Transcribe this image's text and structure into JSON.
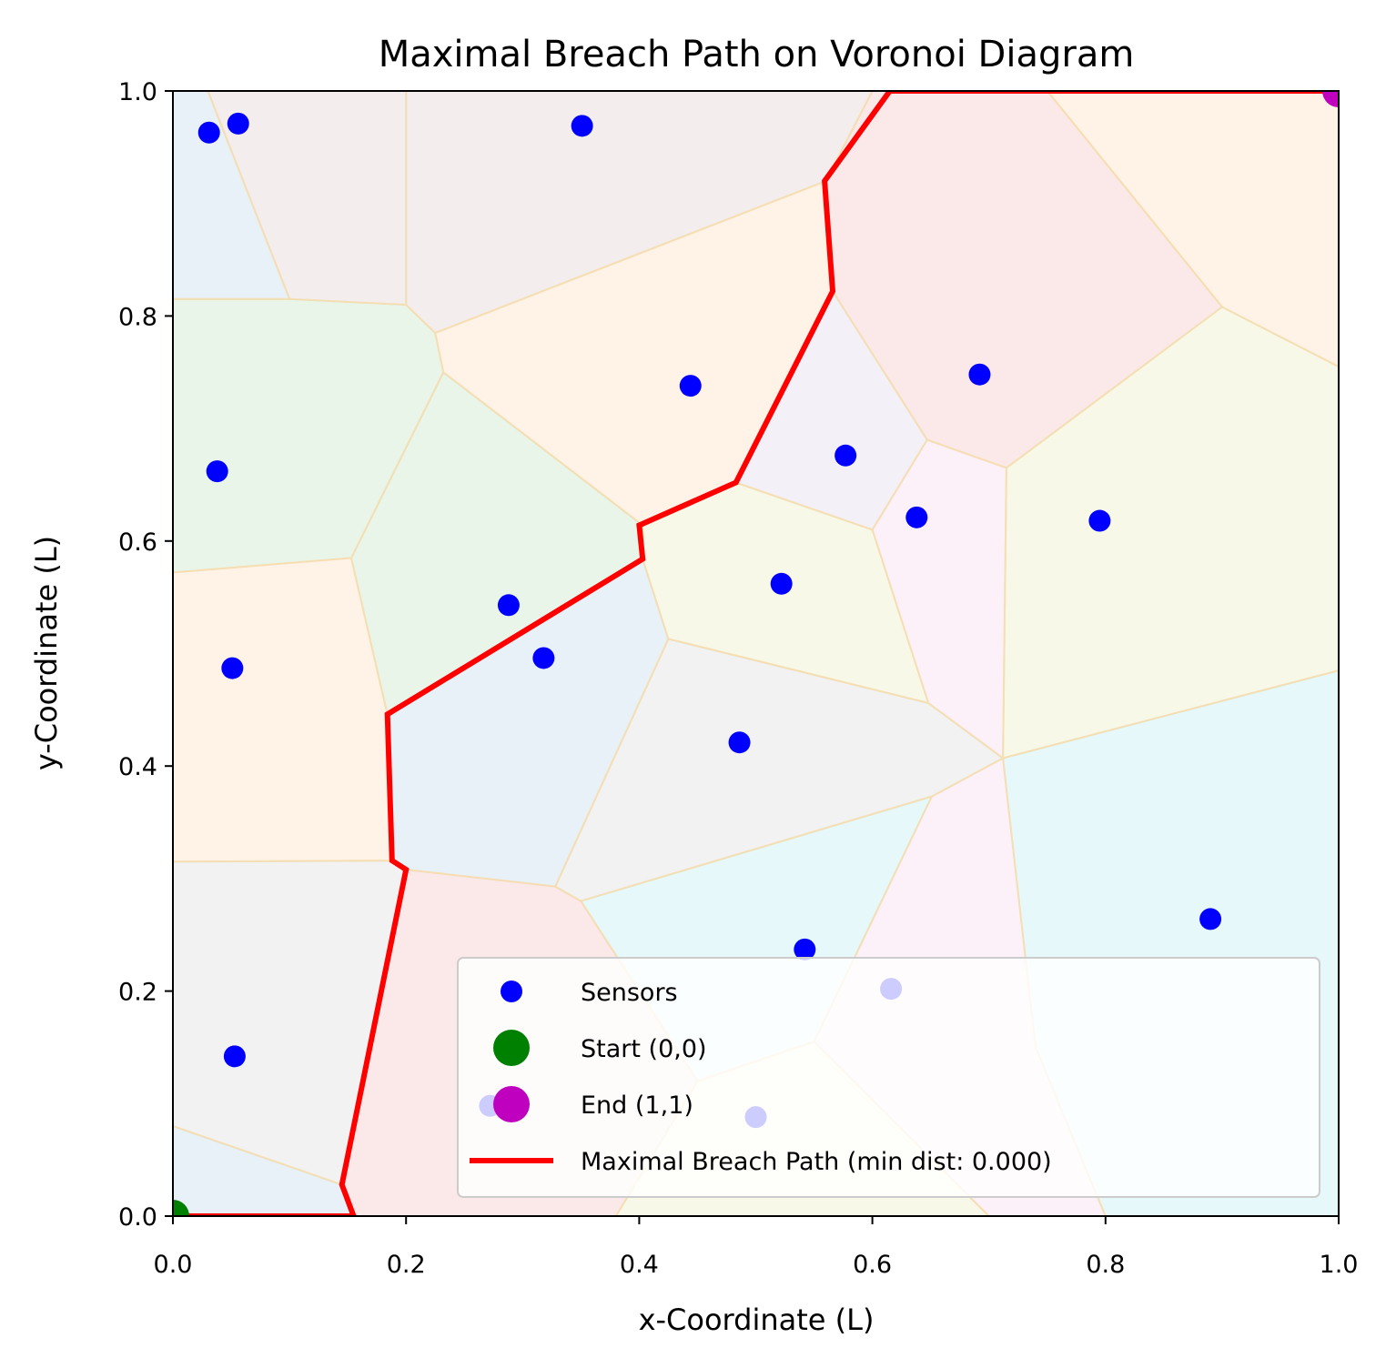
{
  "chart_data": {
    "type": "scatter",
    "title": "Maximal Breach Path on Voronoi Diagram",
    "xlabel": "x-Coordinate (L)",
    "ylabel": "y-Coordinate (L)",
    "xlim": [
      0,
      1
    ],
    "ylim": [
      0,
      1
    ],
    "grid": false,
    "legend_position": "lower-right",
    "xticks": [
      "0.0",
      "0.2",
      "0.4",
      "0.6",
      "0.8",
      "1.0"
    ],
    "yticks": [
      "0.0",
      "0.2",
      "0.4",
      "0.6",
      "0.8",
      "1.0"
    ],
    "colors": {
      "sensor": "#0000ff",
      "start": "#008000",
      "end": "#bf00bf",
      "path": "#ff0000",
      "edge": "#f5deb3"
    },
    "sensors": [
      [
        0.031,
        0.963
      ],
      [
        0.056,
        0.971
      ],
      [
        0.351,
        0.969
      ],
      [
        0.038,
        0.662
      ],
      [
        0.444,
        0.738
      ],
      [
        0.692,
        0.748
      ],
      [
        0.577,
        0.676
      ],
      [
        0.638,
        0.621
      ],
      [
        0.795,
        0.618
      ],
      [
        0.522,
        0.562
      ],
      [
        0.288,
        0.543
      ],
      [
        0.318,
        0.496
      ],
      [
        0.051,
        0.487
      ],
      [
        0.486,
        0.421
      ],
      [
        0.89,
        0.264
      ],
      [
        0.542,
        0.237
      ],
      [
        0.616,
        0.202
      ],
      [
        0.053,
        0.142
      ],
      [
        0.272,
        0.098
      ],
      [
        0.5,
        0.088
      ]
    ],
    "start_point": [
      0,
      0
    ],
    "end_point": [
      1,
      1
    ],
    "path": [
      [
        0.0,
        0.0
      ],
      [
        0.155,
        0.0
      ],
      [
        0.145,
        0.028
      ],
      [
        0.2,
        0.308
      ],
      [
        0.188,
        0.316
      ],
      [
        0.184,
        0.446
      ],
      [
        0.403,
        0.584
      ],
      [
        0.4,
        0.614
      ],
      [
        0.483,
        0.652
      ],
      [
        0.566,
        0.822
      ],
      [
        0.559,
        0.92
      ],
      [
        0.615,
        1.0
      ],
      [
        1.0,
        1.0
      ]
    ],
    "voronoi_cells": [
      {
        "color": "#1f77b4",
        "points": [
          [
            0,
            1
          ],
          [
            0.03,
            1
          ],
          [
            0.1,
            0.815
          ],
          [
            0,
            0.815
          ]
        ]
      },
      {
        "color": "#8c564b",
        "points": [
          [
            0.03,
            1
          ],
          [
            0.2,
            1
          ],
          [
            0.2,
            0.81
          ],
          [
            0.1,
            0.815
          ]
        ]
      },
      {
        "color": "#8c564b",
        "points": [
          [
            0.2,
            1
          ],
          [
            0.6,
            1
          ],
          [
            0.56,
            0.92
          ],
          [
            0.225,
            0.785
          ],
          [
            0.2,
            0.81
          ]
        ]
      },
      {
        "color": "#d62728",
        "points": [
          [
            0.6,
            1
          ],
          [
            0.75,
            1
          ],
          [
            0.9,
            0.808
          ],
          [
            0.715,
            0.665
          ],
          [
            0.647,
            0.69
          ],
          [
            0.566,
            0.822
          ],
          [
            0.56,
            0.92
          ]
        ]
      },
      {
        "color": "#ff7f0e",
        "points": [
          [
            0.75,
            1
          ],
          [
            1,
            1
          ],
          [
            1,
            0.755
          ],
          [
            0.9,
            0.808
          ]
        ]
      },
      {
        "color": "#2ca02c",
        "points": [
          [
            0,
            0.815
          ],
          [
            0.1,
            0.815
          ],
          [
            0.2,
            0.81
          ],
          [
            0.225,
            0.785
          ],
          [
            0.232,
            0.75
          ],
          [
            0.153,
            0.585
          ],
          [
            0,
            0.572
          ]
        ]
      },
      {
        "color": "#ff7f0e",
        "points": [
          [
            0.225,
            0.785
          ],
          [
            0.56,
            0.92
          ],
          [
            0.566,
            0.822
          ],
          [
            0.483,
            0.652
          ],
          [
            0.403,
            0.614
          ],
          [
            0.232,
            0.75
          ]
        ]
      },
      {
        "color": "#2ca02c",
        "points": [
          [
            0.232,
            0.75
          ],
          [
            0.403,
            0.614
          ],
          [
            0.403,
            0.584
          ],
          [
            0.184,
            0.446
          ],
          [
            0.153,
            0.585
          ]
        ]
      },
      {
        "color": "#9467bd",
        "points": [
          [
            0.566,
            0.822
          ],
          [
            0.647,
            0.69
          ],
          [
            0.6,
            0.61
          ],
          [
            0.483,
            0.652
          ]
        ]
      },
      {
        "color": "#e377c2",
        "points": [
          [
            0.647,
            0.69
          ],
          [
            0.715,
            0.665
          ],
          [
            0.712,
            0.407
          ],
          [
            0.648,
            0.456
          ],
          [
            0.6,
            0.61
          ]
        ]
      },
      {
        "color": "#bcbd22",
        "points": [
          [
            0.715,
            0.665
          ],
          [
            0.9,
            0.808
          ],
          [
            1,
            0.755
          ],
          [
            1,
            0.485
          ],
          [
            0.712,
            0.407
          ]
        ]
      },
      {
        "color": "#bcbd22",
        "points": [
          [
            0.403,
            0.614
          ],
          [
            0.483,
            0.652
          ],
          [
            0.6,
            0.61
          ],
          [
            0.648,
            0.456
          ],
          [
            0.425,
            0.513
          ],
          [
            0.403,
            0.584
          ]
        ]
      },
      {
        "color": "#ff7f0e",
        "points": [
          [
            0,
            0.572
          ],
          [
            0.153,
            0.585
          ],
          [
            0.184,
            0.446
          ],
          [
            0.188,
            0.316
          ],
          [
            0,
            0.315
          ]
        ]
      },
      {
        "color": "#1f77b4",
        "points": [
          [
            0.184,
            0.446
          ],
          [
            0.403,
            0.584
          ],
          [
            0.425,
            0.513
          ],
          [
            0.328,
            0.293
          ],
          [
            0.2,
            0.308
          ],
          [
            0.188,
            0.316
          ]
        ]
      },
      {
        "color": "#7f7f7f",
        "points": [
          [
            0.425,
            0.513
          ],
          [
            0.648,
            0.456
          ],
          [
            0.712,
            0.407
          ],
          [
            0.651,
            0.373
          ],
          [
            0.35,
            0.28
          ],
          [
            0.328,
            0.293
          ]
        ]
      },
      {
        "color": "#17becf",
        "points": [
          [
            0.712,
            0.407
          ],
          [
            1,
            0.485
          ],
          [
            1,
            0
          ],
          [
            0.8,
            0
          ],
          [
            0.74,
            0.15
          ]
        ]
      },
      {
        "color": "#e377c2",
        "points": [
          [
            0.651,
            0.373
          ],
          [
            0.712,
            0.407
          ],
          [
            0.74,
            0.15
          ],
          [
            0.8,
            0
          ],
          [
            0.7,
            0
          ],
          [
            0.55,
            0.155
          ]
        ]
      },
      {
        "color": "#17becf",
        "points": [
          [
            0.35,
            0.28
          ],
          [
            0.651,
            0.373
          ],
          [
            0.55,
            0.155
          ],
          [
            0.45,
            0.12
          ]
        ]
      },
      {
        "color": "#7f7f7f",
        "points": [
          [
            0,
            0.315
          ],
          [
            0.188,
            0.316
          ],
          [
            0.2,
            0.308
          ],
          [
            0.145,
            0.028
          ],
          [
            0,
            0.08
          ]
        ]
      },
      {
        "color": "#d62728",
        "points": [
          [
            0.2,
            0.308
          ],
          [
            0.328,
            0.293
          ],
          [
            0.35,
            0.28
          ],
          [
            0.45,
            0.12
          ],
          [
            0.38,
            0
          ],
          [
            0.155,
            0
          ],
          [
            0.145,
            0.028
          ]
        ]
      },
      {
        "color": "#1f77b4",
        "points": [
          [
            0,
            0.08
          ],
          [
            0.145,
            0.028
          ],
          [
            0.155,
            0
          ],
          [
            0,
            0
          ]
        ]
      },
      {
        "color": "#bcbd22",
        "points": [
          [
            0.45,
            0.12
          ],
          [
            0.55,
            0.155
          ],
          [
            0.7,
            0
          ],
          [
            0.38,
            0
          ]
        ]
      }
    ],
    "legend": [
      {
        "label": "Sensors",
        "marker": "sensor"
      },
      {
        "label": "Start (0,0)",
        "marker": "start"
      },
      {
        "label": "End (1,1)",
        "marker": "end"
      },
      {
        "label": "Maximal Breach Path (min dist: 0.000)",
        "marker": "path"
      }
    ]
  }
}
